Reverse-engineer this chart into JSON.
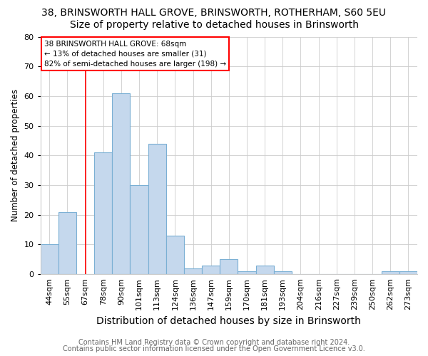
{
  "title1": "38, BRINSWORTH HALL GROVE, BRINSWORTH, ROTHERHAM, S60 5EU",
  "title2": "Size of property relative to detached houses in Brinsworth",
  "xlabel": "Distribution of detached houses by size in Brinsworth",
  "ylabel": "Number of detached properties",
  "categories": [
    "44sqm",
    "55sqm",
    "67sqm",
    "78sqm",
    "90sqm",
    "101sqm",
    "113sqm",
    "124sqm",
    "136sqm",
    "147sqm",
    "159sqm",
    "170sqm",
    "181sqm",
    "193sqm",
    "204sqm",
    "216sqm",
    "227sqm",
    "239sqm",
    "250sqm",
    "262sqm",
    "273sqm"
  ],
  "values": [
    10,
    21,
    0,
    41,
    61,
    30,
    44,
    13,
    2,
    3,
    5,
    1,
    3,
    1,
    0,
    0,
    0,
    0,
    0,
    1,
    1
  ],
  "bar_color": "#c5d8ed",
  "bar_edgecolor": "#7aafd4",
  "redline_x": 2.5,
  "annotation_title": "38 BRINSWORTH HALL GROVE: 68sqm",
  "annotation_line2": "← 13% of detached houses are smaller (31)",
  "annotation_line3": "82% of semi-detached houses are larger (198) →",
  "footnote1": "Contains HM Land Registry data © Crown copyright and database right 2024.",
  "footnote2": "Contains public sector information licensed under the Open Government Licence v3.0.",
  "ylim": [
    0,
    80
  ],
  "yticks": [
    0,
    10,
    20,
    30,
    40,
    50,
    60,
    70,
    80
  ],
  "title1_fontsize": 10,
  "title2_fontsize": 10,
  "xlabel_fontsize": 10,
  "ylabel_fontsize": 8.5,
  "tick_fontsize": 8,
  "annot_fontsize": 7.5,
  "footnote_fontsize": 7
}
